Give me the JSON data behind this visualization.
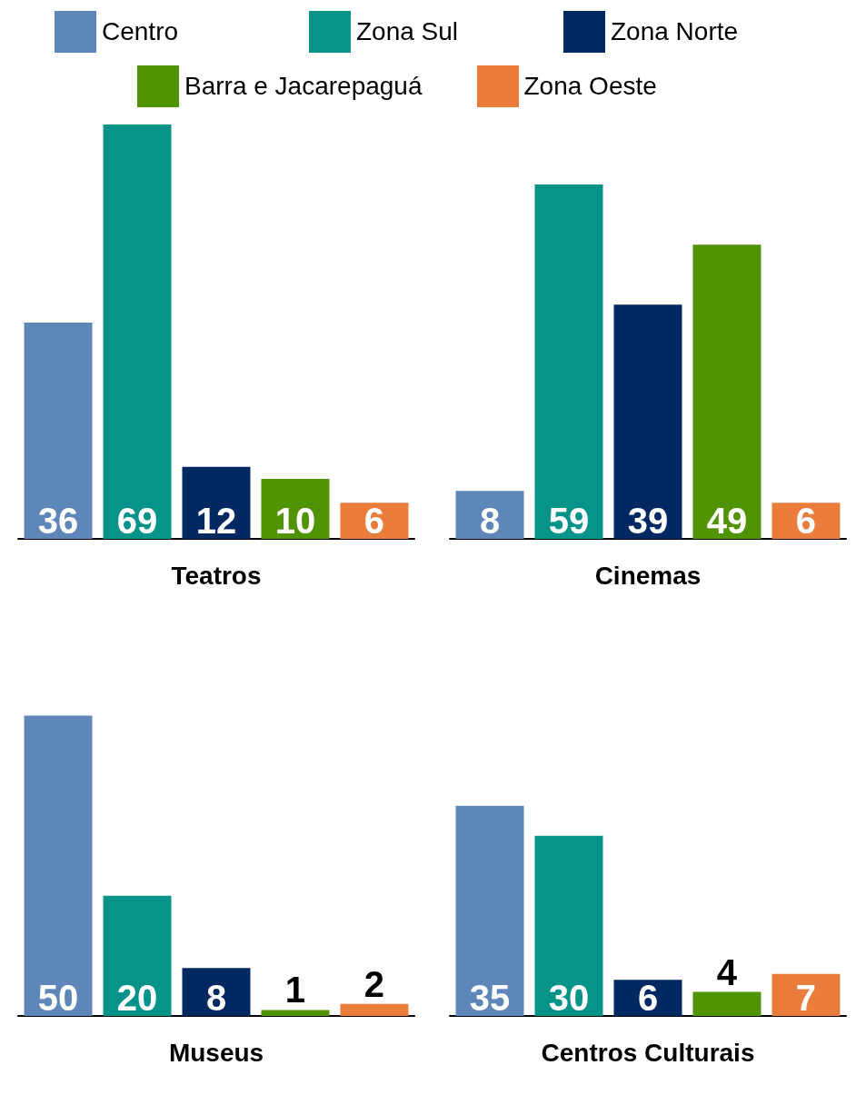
{
  "chart_data": [
    {
      "type": "bar",
      "xlabel": "Teatros",
      "categories": [
        null
      ],
      "legend": "top",
      "data_labels": true,
      "series": [
        {
          "name": "Centro",
          "color": "#5e86b9",
          "values": [
            36
          ]
        },
        {
          "name": "Zona Sul",
          "color": "#06938a",
          "values": [
            69
          ]
        },
        {
          "name": "Zona Norte",
          "color": "#022862",
          "values": [
            12
          ]
        },
        {
          "name": "Barra e Jacarepaguá",
          "color": "#509403",
          "values": [
            10
          ]
        },
        {
          "name": "Zona Oeste",
          "color": "#ea7d3c",
          "values": [
            6
          ]
        }
      ]
    },
    {
      "type": "bar",
      "xlabel": "Cinemas",
      "categories": [
        null
      ],
      "data_labels": true,
      "series": [
        {
          "color": "#5e86b9",
          "values": [
            8
          ]
        },
        {
          "color": "#06938a",
          "values": [
            59
          ]
        },
        {
          "color": "#022862",
          "values": [
            39
          ]
        },
        {
          "color": "#509403",
          "values": [
            49
          ]
        },
        {
          "color": "#ea7d3c",
          "values": [
            6
          ]
        }
      ]
    },
    {
      "type": "bar",
      "xlabel": "Museus",
      "categories": [
        null
      ],
      "data_labels": true,
      "series": [
        {
          "color": "#5e86b9",
          "values": [
            50
          ]
        },
        {
          "color": "#06938a",
          "values": [
            20
          ]
        },
        {
          "color": "#022862",
          "values": [
            8
          ]
        },
        {
          "color": "#509403",
          "values": [
            1
          ]
        },
        {
          "color": "#ea7d3c",
          "values": [
            2
          ]
        }
      ]
    },
    {
      "type": "bar",
      "xlabel": "Centros Culturais",
      "categories": [
        null
      ],
      "data_labels": true,
      "series": [
        {
          "color": "#5e86b9",
          "values": [
            35
          ]
        },
        {
          "color": "#06938a",
          "values": [
            30
          ]
        },
        {
          "color": "#022862",
          "values": [
            6
          ]
        },
        {
          "color": "#509403",
          "values": [
            4
          ]
        },
        {
          "color": "#ea7d3c",
          "values": [
            7
          ]
        }
      ]
    }
  ]
}
